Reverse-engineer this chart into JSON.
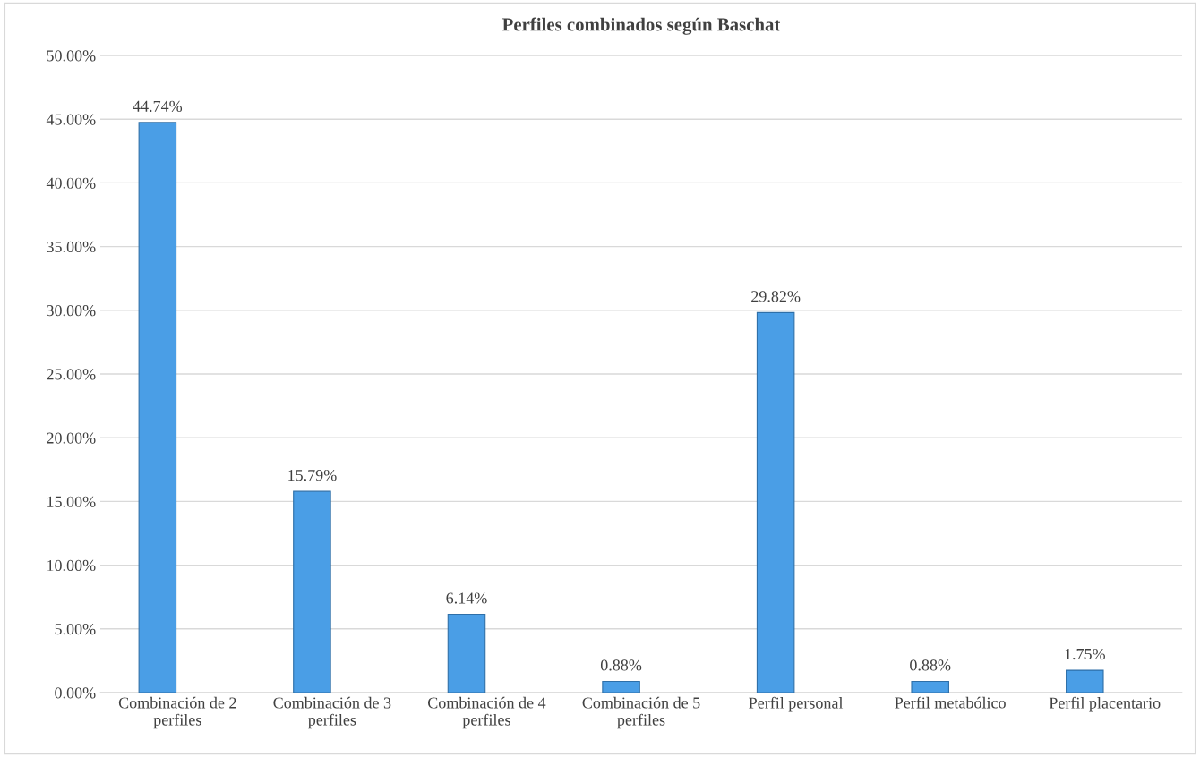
{
  "chart_data": {
    "type": "bar",
    "title": "Perfiles combinados según Baschat",
    "categories": [
      "Combinación de 2\nperfiles",
      "Combinación de 3\nperfiles",
      "Combinación de 4\nperfiles",
      "Combinación de 5\nperfiles",
      "Perfil personal",
      "Perfil metabólico",
      "Perfil placentario"
    ],
    "values": [
      44.74,
      15.79,
      6.14,
      0.88,
      29.82,
      0.88,
      1.75
    ],
    "value_labels": [
      "44.74%",
      "15.79%",
      "6.14%",
      "0.88%",
      "29.82%",
      "0.88%",
      "1.75%"
    ],
    "color": "#4a9ee6",
    "ylim": [
      0,
      50
    ],
    "yticks": [
      {
        "value": 0,
        "label": "0.00%"
      },
      {
        "value": 5,
        "label": "5.00%"
      },
      {
        "value": 10,
        "label": "10.00%"
      },
      {
        "value": 15,
        "label": "15.00%"
      },
      {
        "value": 20,
        "label": "20.00%"
      },
      {
        "value": 25,
        "label": "25.00%"
      },
      {
        "value": 30,
        "label": "30.00%"
      },
      {
        "value": 35,
        "label": "35.00%"
      },
      {
        "value": 40,
        "label": "40.00%"
      },
      {
        "value": 45,
        "label": "45.00%"
      },
      {
        "value": 50,
        "label": "50.00%"
      }
    ],
    "grid": "y"
  }
}
